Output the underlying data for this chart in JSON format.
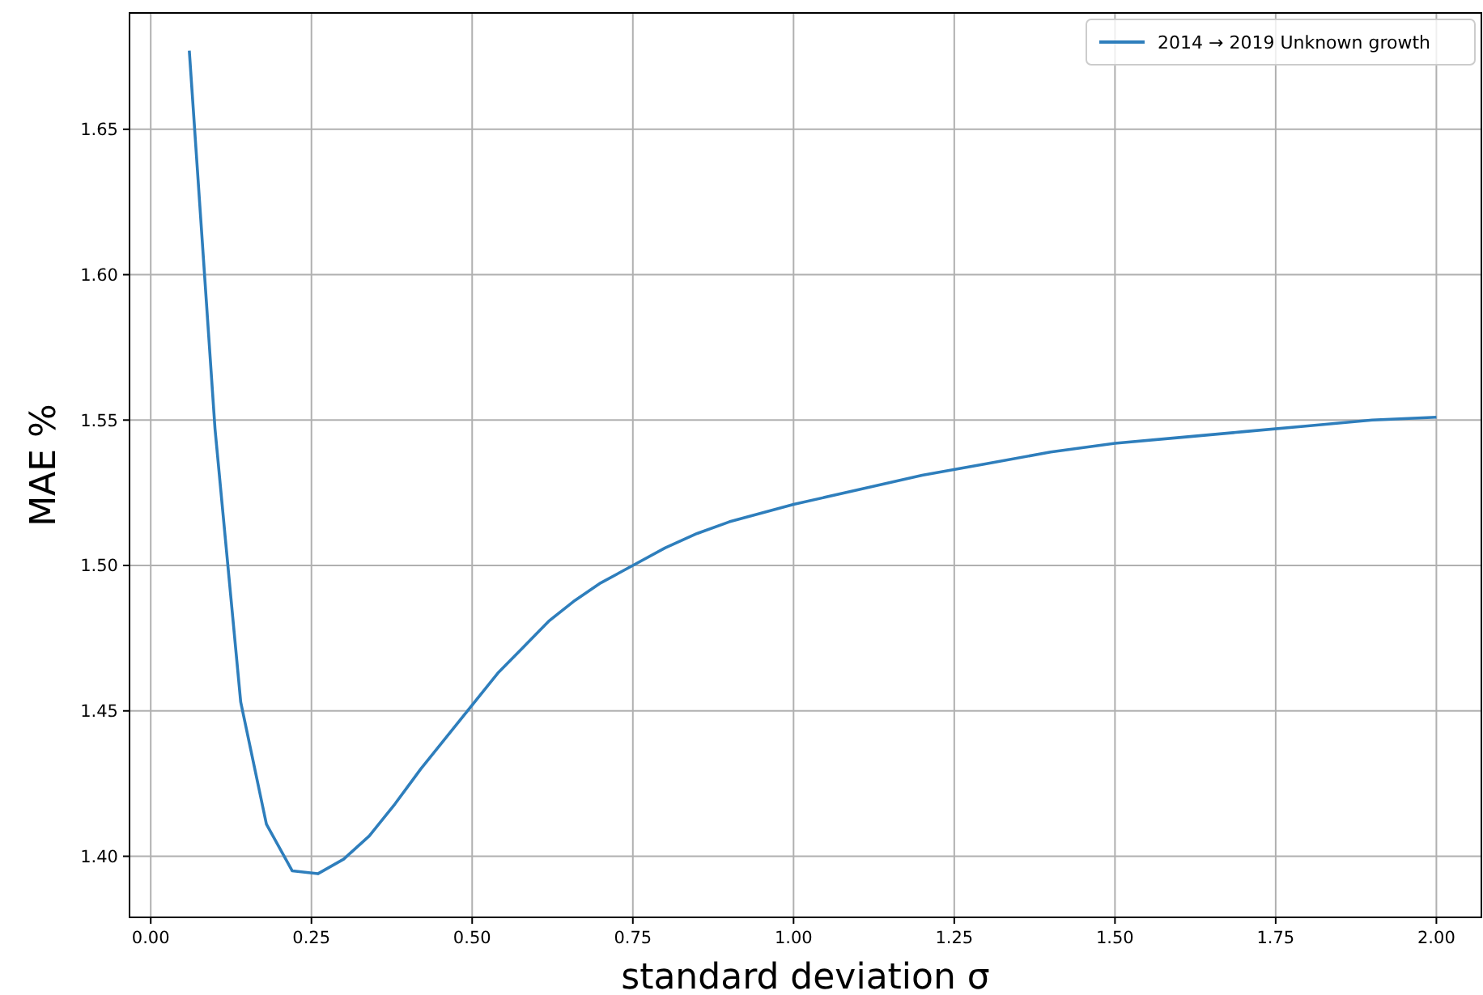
{
  "chart_data": {
    "type": "line",
    "xlabel": "standard deviation σ",
    "ylabel": "MAE %",
    "x": [
      0.06,
      0.1,
      0.14,
      0.18,
      0.22,
      0.26,
      0.3,
      0.34,
      0.38,
      0.42,
      0.46,
      0.5,
      0.54,
      0.58,
      0.62,
      0.66,
      0.7,
      0.75,
      0.8,
      0.85,
      0.9,
      1.0,
      1.1,
      1.2,
      1.3,
      1.4,
      1.5,
      1.6,
      1.7,
      1.8,
      1.9,
      2.0
    ],
    "series": [
      {
        "name": "2014 → 2019 Unknown growth",
        "color": "#2e7ebc",
        "values": [
          1.677,
          1.547,
          1.453,
          1.411,
          1.395,
          1.394,
          1.399,
          1.407,
          1.418,
          1.43,
          1.441,
          1.452,
          1.463,
          1.472,
          1.481,
          1.488,
          1.494,
          1.5,
          1.506,
          1.511,
          1.515,
          1.521,
          1.526,
          1.531,
          1.535,
          1.539,
          1.542,
          1.544,
          1.546,
          1.548,
          1.55,
          1.551
        ]
      }
    ],
    "xlim": [
      -0.033,
      2.07
    ],
    "ylim": [
      1.379,
      1.69
    ],
    "xticks": [
      {
        "value": 0,
        "label": "0.00"
      },
      {
        "value": 0.25,
        "label": "0.25"
      },
      {
        "value": 0.5,
        "label": "0.50"
      },
      {
        "value": 0.75,
        "label": "0.75"
      },
      {
        "value": 1,
        "label": "1.00"
      },
      {
        "value": 1.25,
        "label": "1.25"
      },
      {
        "value": 1.5,
        "label": "1.50"
      },
      {
        "value": 1.75,
        "label": "1.75"
      },
      {
        "value": 2,
        "label": "2.00"
      }
    ],
    "yticks": [
      {
        "value": 1.4,
        "label": "1.40"
      },
      {
        "value": 1.45,
        "label": "1.45"
      },
      {
        "value": 1.5,
        "label": "1.50"
      },
      {
        "value": 1.55,
        "label": "1.55"
      },
      {
        "value": 1.6,
        "label": "1.60"
      },
      {
        "value": 1.65,
        "label": "1.65"
      }
    ],
    "grid": true,
    "legend": "top right",
    "marker": "none",
    "line_style": "solid"
  }
}
